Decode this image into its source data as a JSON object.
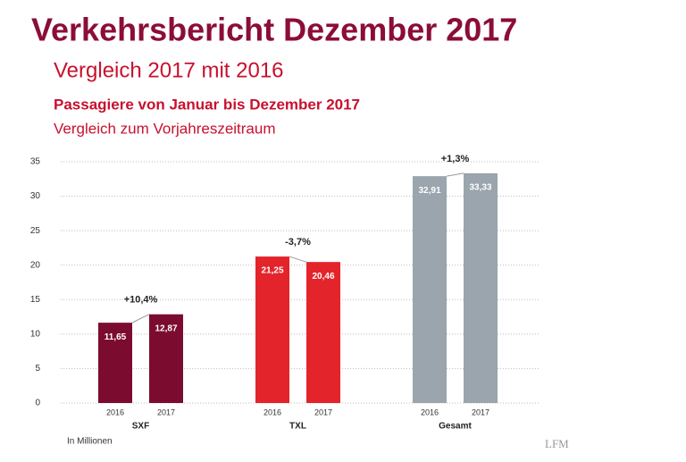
{
  "chart_data": {
    "type": "bar",
    "title": "Verkehrsbericht Dezember 2017",
    "subtitle": "Vergleich 2017 mit 2016",
    "chart_title": "Passagiere von Januar bis Dezember 2017",
    "chart_subtitle": "Vergleich zum Vorjahreszeitraum",
    "groups": [
      {
        "name": "SXF",
        "color": "#7b0c30",
        "categories": [
          "2016",
          "2017"
        ],
        "values": [
          11.65,
          12.87
        ],
        "value_labels": [
          "11,65",
          "12,87"
        ],
        "change": "+10,4%"
      },
      {
        "name": "TXL",
        "color": "#e3242b",
        "categories": [
          "2016",
          "2017"
        ],
        "values": [
          21.25,
          20.46
        ],
        "value_labels": [
          "21,25",
          "20,46"
        ],
        "change": "-3,7%"
      },
      {
        "name": "Gesamt",
        "color": "#9aa5ad",
        "categories": [
          "2016",
          "2017"
        ],
        "values": [
          32.91,
          33.33
        ],
        "value_labels": [
          "32,91",
          "33,33"
        ],
        "change": "+1,3%"
      }
    ],
    "ylim": [
      0,
      35
    ],
    "yticks": [
      0,
      5,
      10,
      15,
      20,
      25,
      30,
      35
    ],
    "grid": true,
    "note": "In Millionen",
    "watermark": "LFM"
  }
}
